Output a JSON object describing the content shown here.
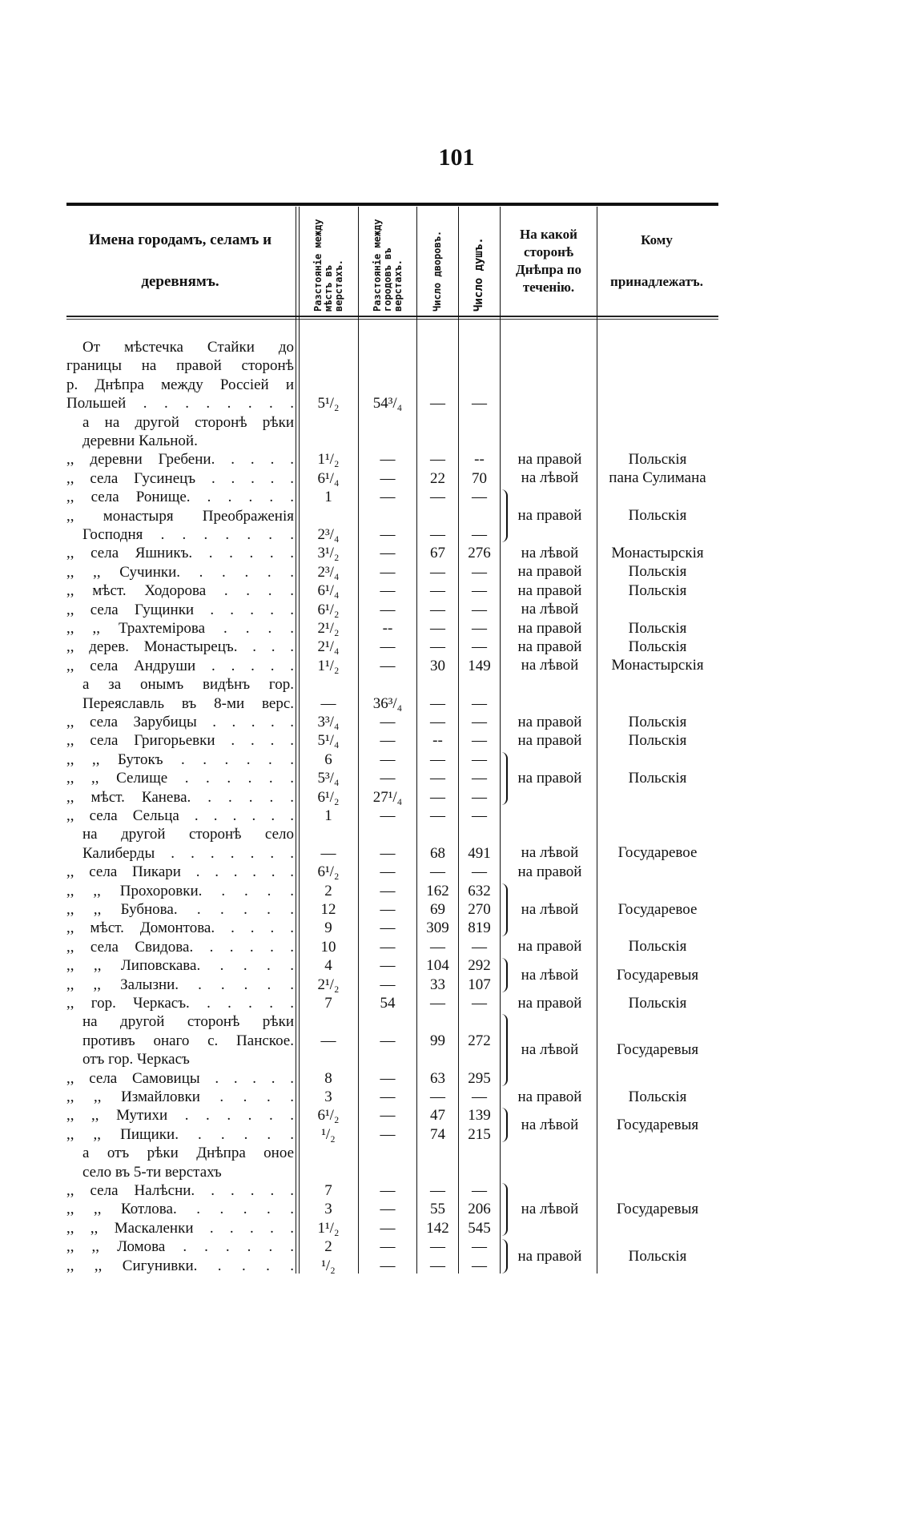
{
  "page_number": "101",
  "headers": {
    "name": "Имена городамъ, селамъ и деревнямъ.",
    "dist_places": "Разстояніе между мѣстъ въ верстахъ.",
    "dist_towns": "Разстояніе между городовъ въ верстахъ.",
    "households": "Число дворовъ.",
    "souls": "Число душъ.",
    "side": "На какой сторонѣ Днѣпра по теченію.",
    "owner": "Кому принадлежатъ."
  },
  "rows": [
    {
      "t": "От мѣстечка Стайки до",
      "s": "i j"
    },
    {
      "t": "границы на правой сторонѣ",
      "s": "j"
    },
    {
      "t": "р. Днѣпра между Россіей и",
      "s": "j"
    },
    {
      "t": "Польшей . . . . . . . .",
      "s": "j",
      "d1": "5¹/₂",
      "d2": "54³/₄",
      "h": "—",
      "u": "—"
    },
    {
      "t": "а на другой сторонѣ рѣки",
      "s": "i j"
    },
    {
      "t": "деревни Кальной.",
      "s": "i"
    },
    {
      "t": ",, деревни Гребени. . . . .",
      "s": "j",
      "d1": "1¹/₂",
      "d2": "—",
      "h": "—",
      "u": "--"
    },
    {
      "t": ",, села Гусинецъ . . . . .",
      "s": "j",
      "d1": "6¹/₄",
      "d2": "—",
      "h": "22",
      "u": "70"
    },
    {
      "t": ",, села Ронище. . . . . .",
      "s": "j",
      "d1": "1",
      "d2": "—",
      "h": "—",
      "u": "—"
    },
    {
      "t": ",, монастыря Преображенія",
      "s": "j"
    },
    {
      "t": "Господня . . . . . . .",
      "s": "i j",
      "d1": "2³/₄",
      "d2": "—",
      "h": "—",
      "u": "—"
    },
    {
      "t": ",, села Яшникъ. . . . . .",
      "s": "j",
      "d1": "3¹/₂",
      "d2": "—",
      "h": "67",
      "u": "276"
    },
    {
      "t": ",, ,, Сучинки. . . . . .",
      "s": "j",
      "d1": "2³/₄",
      "d2": "—",
      "h": "—",
      "u": "—"
    },
    {
      "t": ",, мѣст. Ходорова . . . .",
      "s": "j",
      "d1": "6¹/₄",
      "d2": "—",
      "h": "—",
      "u": "—"
    },
    {
      "t": ",, села Гущинки . . . . .",
      "s": "j",
      "d1": "6¹/₂",
      "d2": "—",
      "h": "—",
      "u": "—"
    },
    {
      "t": ",, ,, Трахтемірова . . . .",
      "s": "j",
      "d1": "2¹/₂",
      "d2": "--",
      "h": "—",
      "u": "—"
    },
    {
      "t": ",, дерев. Монастырецъ. . . .",
      "s": "j",
      "d1": "2¹/₄",
      "d2": "—",
      "h": "—",
      "u": "—"
    },
    {
      "t": ",, села Андруши . . . . .",
      "s": "j",
      "d1": "1¹/₂",
      "d2": "—",
      "h": "30",
      "u": "149"
    },
    {
      "t": "а за онымъ видѣнъ гор.",
      "s": "i j"
    },
    {
      "t": "Переяславль въ 8-ми верс.",
      "s": "i j",
      "d1": "—",
      "d2": "36³/₄",
      "h": "—",
      "u": "—"
    },
    {
      "t": ",, села Зарубицы . . . . .",
      "s": "j",
      "d1": "3³/₄",
      "d2": "—",
      "h": "—",
      "u": "—"
    },
    {
      "t": ",, села Григорьевки . . . .",
      "s": "j",
      "d1": "5¹/₄",
      "d2": "—",
      "h": "--",
      "u": "—"
    },
    {
      "t": ",, ,, Бутокъ . . . . . .",
      "s": "j",
      "d1": "6",
      "d2": "—",
      "h": "—",
      "u": "—"
    },
    {
      "t": ",, ,, Селище . . . . . .",
      "s": "j",
      "d1": "5³/₄",
      "d2": "—",
      "h": "—",
      "u": "—"
    },
    {
      "t": ",, мѣст. Канева. . . . . .",
      "s": "j",
      "d1": "6¹/₂",
      "d2": "27¹/₄",
      "h": "—",
      "u": "—"
    },
    {
      "t": ",, села Сельца . . . . . .",
      "s": "j",
      "d1": "1",
      "d2": "—",
      "h": "—",
      "u": "—"
    },
    {
      "t": "на другой сторонѣ село",
      "s": "i j"
    },
    {
      "t": "Калиберды . . . . . . .",
      "s": "i j",
      "d1": "—",
      "d2": "—",
      "h": "68",
      "u": "491"
    },
    {
      "t": ",, села Пикари . . . . . .",
      "s": "j",
      "d1": "6¹/₂",
      "d2": "—",
      "h": "—",
      "u": "—"
    },
    {
      "t": ",, ,, Прохоровки. . . . .",
      "s": "j",
      "d1": "2",
      "d2": "—",
      "h": "162",
      "u": "632"
    },
    {
      "t": ",, ,, Бубнова. . . . . .",
      "s": "j",
      "d1": "12",
      "d2": "—",
      "h": "69",
      "u": "270"
    },
    {
      "t": ",, мѣст. Домонтова. . . . .",
      "s": "j",
      "d1": "9",
      "d2": "—",
      "h": "309",
      "u": "819"
    },
    {
      "t": ",, села Свидова. . . . . .",
      "s": "j",
      "d1": "10",
      "d2": "—",
      "h": "—",
      "u": "—"
    },
    {
      "t": ",, ,, Липовскава. . . . .",
      "s": "j",
      "d1": "4",
      "d2": "—",
      "h": "104",
      "u": "292"
    },
    {
      "t": ",, ,, Залызни. . . . . .",
      "s": "j",
      "d1": "2¹/₂",
      "d2": "—",
      "h": "33",
      "u": "107"
    },
    {
      "t": ",, гор. Черкасъ. . . . . .",
      "s": "j",
      "d1": "7",
      "d2": "54",
      "h": "—",
      "u": "—"
    },
    {
      "t": "на другой сторонѣ рѣки",
      "s": "i j"
    },
    {
      "t": "противъ онаго с. Панское.",
      "s": "i j",
      "d1": "—",
      "d2": "—",
      "h": "99",
      "u": "272"
    },
    {
      "t": "отъ гор. Черкасъ",
      "s": "i"
    },
    {
      "t": ",, села Самовицы . . . . .",
      "s": "j",
      "d1": "8",
      "d2": "—",
      "h": "63",
      "u": "295"
    },
    {
      "t": ",, ,, Измайловки . . . .",
      "s": "j",
      "d1": "3",
      "d2": "—",
      "h": "—",
      "u": "—"
    },
    {
      "t": ",, ,, Мутихи . . . . . .",
      "s": "j",
      "d1": "6¹/₂",
      "d2": "—",
      "h": "47",
      "u": "139"
    },
    {
      "t": ",, ,, Пищики. . . . . .",
      "s": "j",
      "d1": "¹/₂",
      "d2": "—",
      "h": "74",
      "u": "215"
    },
    {
      "t": "а отъ рѣки Днѣпра оное",
      "s": "i j"
    },
    {
      "t": "село въ 5-ти верстахъ",
      "s": "i"
    },
    {
      "t": ",, села Налѣсни. . . . . .",
      "s": "j",
      "d1": "7",
      "d2": "—",
      "h": "—",
      "u": "—"
    },
    {
      "t": ",, ,, Котлова. . . . . .",
      "s": "j",
      "d1": "3",
      "d2": "—",
      "h": "55",
      "u": "206"
    },
    {
      "t": ",, ,, Маскаленки . . . . .",
      "s": "j",
      "d1": "1¹/₂",
      "d2": "—",
      "h": "142",
      "u": "545"
    },
    {
      "t": ",, ,, Ломова . . . . . .",
      "s": "j",
      "d1": "2",
      "d2": "—",
      "h": "—",
      "u": "—"
    },
    {
      "t": ",, ,, Сигунивки. . . . .",
      "s": "j",
      "d1": "¹/₂",
      "d2": "—",
      "h": "—",
      "u": "—"
    }
  ],
  "spans": [
    {
      "r": [
        6,
        6
      ],
      "side": "на правой",
      "owner": "Польскія"
    },
    {
      "r": [
        7,
        7
      ],
      "side": "на лѣвой",
      "owner": "пана Сулимана"
    },
    {
      "r": [
        8,
        10
      ],
      "side": "на правой",
      "owner": "Польскія"
    },
    {
      "r": [
        11,
        11
      ],
      "side": "на лѣвой",
      "owner": "Монастырскія"
    },
    {
      "r": [
        12,
        12
      ],
      "side": "на правой",
      "owner": "Польскія"
    },
    {
      "r": [
        13,
        13
      ],
      "side": "на правой",
      "owner": "Польскія"
    },
    {
      "r": [
        14,
        14
      ],
      "side": "на лѣвой",
      "owner": ""
    },
    {
      "r": [
        15,
        15
      ],
      "side": "на правой",
      "owner": "Польскія"
    },
    {
      "r": [
        16,
        16
      ],
      "side": "на правой",
      "owner": "Польскія"
    },
    {
      "r": [
        17,
        17
      ],
      "side": "на лѣвой",
      "owner": "Монастырскія"
    },
    {
      "r": [
        20,
        20
      ],
      "side": "на правой",
      "owner": "Польскія"
    },
    {
      "r": [
        21,
        21
      ],
      "side": "на правой",
      "owner": "Польскія"
    },
    {
      "r": [
        22,
        24
      ],
      "side": "на правой",
      "owner": "Польскія"
    },
    {
      "r": [
        27,
        27
      ],
      "side": "на лѣвой",
      "owner": "Государевое"
    },
    {
      "r": [
        28,
        28
      ],
      "side": "на правой",
      "owner": ""
    },
    {
      "r": [
        29,
        31
      ],
      "side": "на лѣвой",
      "owner": "Государевое"
    },
    {
      "r": [
        32,
        32
      ],
      "side": "на правой",
      "owner": "Польскія"
    },
    {
      "r": [
        33,
        34
      ],
      "side": "на лѣвой",
      "owner": "Государевыя"
    },
    {
      "r": [
        35,
        35
      ],
      "side": "на правой",
      "owner": "Польскія"
    },
    {
      "r": [
        36,
        39
      ],
      "side": "на лѣвой",
      "owner": "Государевыя"
    },
    {
      "r": [
        40,
        40
      ],
      "side": "на правой",
      "owner": "Польскія"
    },
    {
      "r": [
        41,
        42
      ],
      "side": "на лѣвой",
      "owner": "Государевыя"
    },
    {
      "r": [
        45,
        47
      ],
      "side": "на лѣвой",
      "owner": "Государевыя"
    },
    {
      "r": [
        48,
        49
      ],
      "side": "на правой",
      "owner": "Польскія"
    }
  ]
}
